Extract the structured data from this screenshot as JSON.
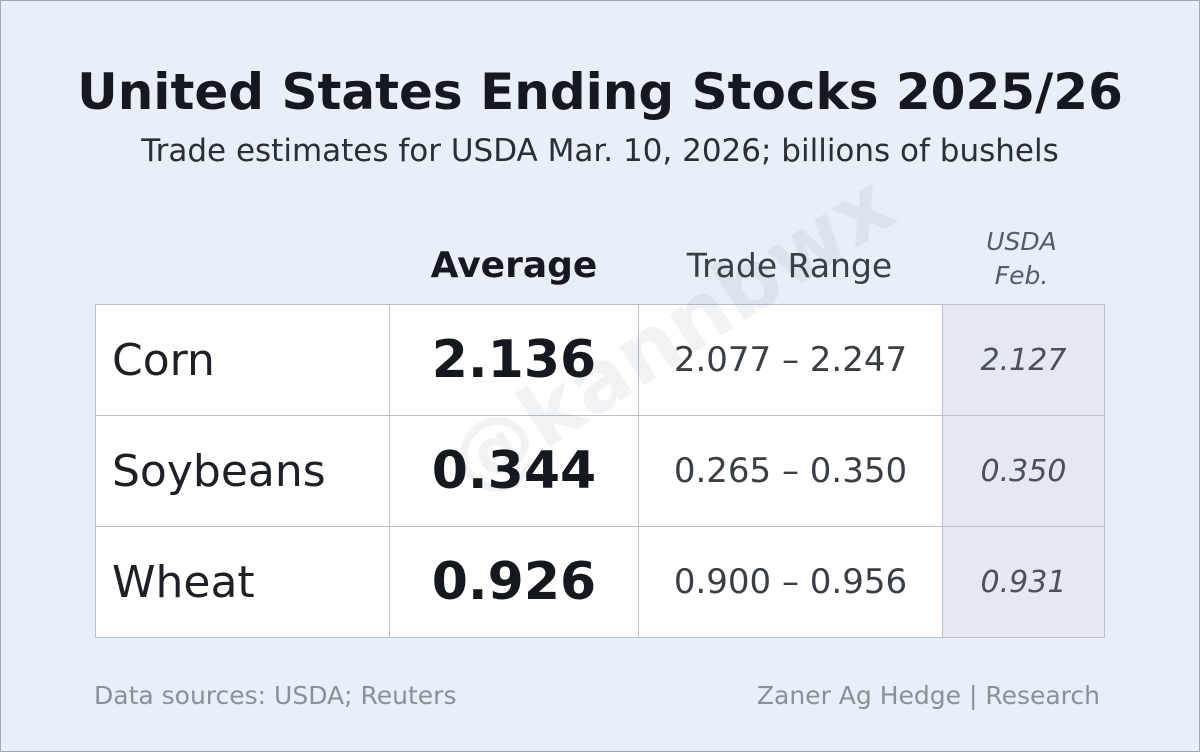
{
  "header": {
    "title": "United States Ending Stocks 2025/26",
    "subtitle": "Trade estimates for USDA Mar. 10, 2026; billions of bushels"
  },
  "table": {
    "columns": [
      "Average",
      "Trade Range",
      "USDA Feb."
    ],
    "rows": [
      [
        "Corn",
        "2.136",
        "2.077 – 2.247",
        "2.127"
      ],
      [
        "Soybeans",
        "0.344",
        "0.265 – 0.350",
        "0.350"
      ],
      [
        "Wheat",
        "0.926",
        "0.900 – 0.956",
        "0.931"
      ]
    ]
  },
  "watermark": "@kannbwx",
  "footer": {
    "source": "Data sources: USDA; Reuters",
    "credit": "Zaner Ag Hedge | Research"
  }
}
